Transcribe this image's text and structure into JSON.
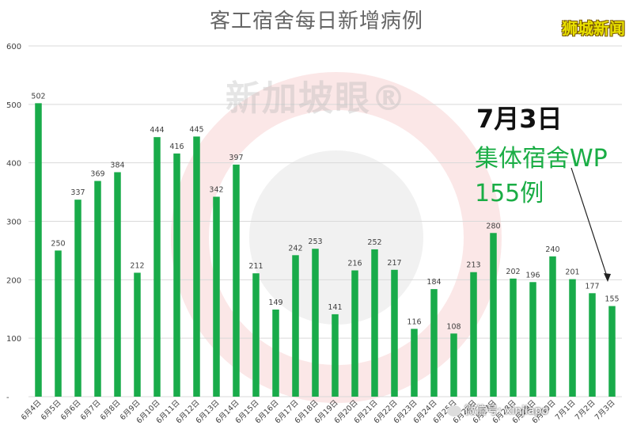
{
  "header": {
    "title": "客工宿舍每日新增病例",
    "brand": "狮城新闻",
    "watermark": "新加坡眼®"
  },
  "annotation": {
    "date": "7月3日",
    "type": "集体宿舍WP",
    "count": "155例"
  },
  "credit": "微信号: xinjiapo",
  "colors": {
    "bar": "#19ab4a",
    "annotation_text": "#1aad45",
    "axis_text": "#404040"
  },
  "chart_data": {
    "type": "bar",
    "title": "客工宿舍每日新增病例",
    "xlabel": "",
    "ylabel": "",
    "ylim": [
      0,
      600
    ],
    "yticks": [
      "-",
      "100",
      "200",
      "300",
      "400",
      "500",
      "600"
    ],
    "grid": true,
    "categories": [
      "6月4日",
      "6月5日",
      "6月6日",
      "6月7日",
      "6月8日",
      "6月9日",
      "6月10日",
      "6月11日",
      "6月12日",
      "6月13日",
      "6月14日",
      "6月15日",
      "6月16日",
      "6月17日",
      "6月18日",
      "6月19日",
      "6月20日",
      "6月21日",
      "6月22日",
      "6月23日",
      "6月24日",
      "6月25日",
      "6月26日",
      "6月27日",
      "6月28日",
      "6月29日",
      "6月30日",
      "7月1日",
      "7月2日",
      "7月3日"
    ],
    "values": [
      502,
      250,
      337,
      369,
      384,
      212,
      444,
      416,
      445,
      342,
      397,
      211,
      149,
      242,
      253,
      141,
      216,
      252,
      217,
      116,
      184,
      108,
      213,
      280,
      202,
      196,
      240,
      201,
      177,
      155
    ]
  }
}
